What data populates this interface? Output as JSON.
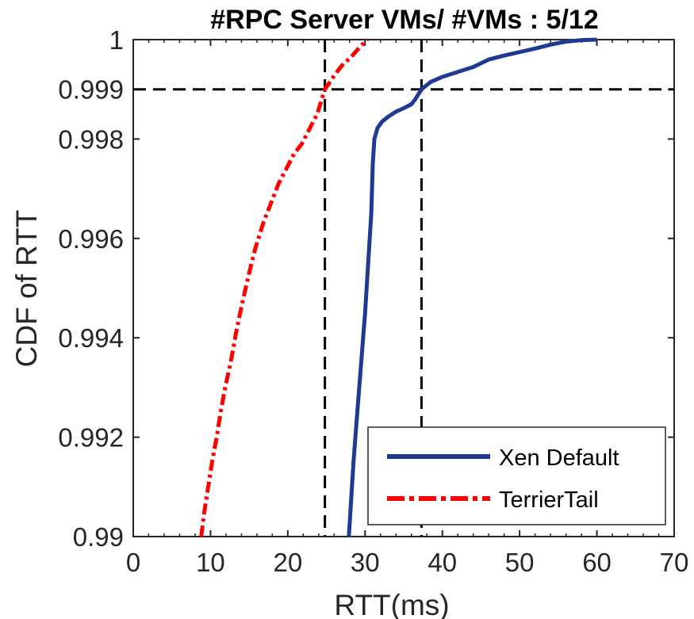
{
  "chart_data": {
    "type": "line",
    "title": "#RPC Server VMs/ #VMs  : 5/12",
    "xlabel": "RTT(ms)",
    "ylabel": "CDF of RTT",
    "xlim": [
      0,
      70
    ],
    "ylim": [
      0.99,
      1.0
    ],
    "x_ticks": [
      0,
      10,
      20,
      30,
      40,
      50,
      60,
      70
    ],
    "x_tick_labels": [
      "0",
      "10",
      "20",
      "30",
      "40",
      "50",
      "60",
      "70"
    ],
    "y_ticks": [
      0.99,
      0.992,
      0.994,
      0.996,
      0.998,
      0.999,
      1.0
    ],
    "y_tick_labels": [
      "0.99",
      "0.992",
      "0.994",
      "0.996",
      "0.998",
      "0.999",
      "1"
    ],
    "grid": false,
    "legend_position": "bottom-right",
    "reference_lines": {
      "horizontal": [
        0.999
      ],
      "vertical": [
        24.8,
        37.3
      ],
      "color": "#000000",
      "style": "dashed"
    },
    "series": [
      {
        "name": "Xen Default",
        "color": "#1f3a93",
        "style": "solid",
        "x": [
          27.9,
          28.1,
          28.5,
          29.0,
          29.5,
          30.0,
          30.4,
          30.8,
          31.0,
          31.2,
          31.6,
          32.2,
          33.0,
          34.0,
          35.0,
          36.0,
          36.5,
          37.3,
          38.5,
          40.0,
          42.0,
          44.0,
          46.0,
          48.0,
          50.0,
          52.0,
          54.0,
          56.0,
          58.0,
          60.0
        ],
        "y": [
          0.99,
          0.9905,
          0.9915,
          0.9925,
          0.9935,
          0.9945,
          0.9955,
          0.9965,
          0.9975,
          0.998,
          0.99822,
          0.99835,
          0.99845,
          0.99855,
          0.99862,
          0.9987,
          0.9988,
          0.999,
          0.99915,
          0.99925,
          0.99935,
          0.99945,
          0.9996,
          0.99968,
          0.99975,
          0.99982,
          0.9999,
          0.99996,
          0.99999,
          1.0
        ]
      },
      {
        "name": "TerrierTail",
        "color": "#ff0000",
        "style": "dashdot",
        "x": [
          8.8,
          9.2,
          9.7,
          10.2,
          10.8,
          11.3,
          11.9,
          12.6,
          13.3,
          14.1,
          15.0,
          15.8,
          16.8,
          17.8,
          18.8,
          19.8,
          20.8,
          21.8,
          22.8,
          23.8,
          24.8,
          25.9,
          27.0,
          28.2,
          29.5,
          30.3
        ],
        "y": [
          0.99,
          0.9905,
          0.991,
          0.9915,
          0.992,
          0.9925,
          0.993,
          0.9935,
          0.9941,
          0.9947,
          0.9953,
          0.9958,
          0.9963,
          0.9967,
          0.9971,
          0.9974,
          0.9977,
          0.9979,
          0.9982,
          0.9985,
          0.999,
          0.99925,
          0.99948,
          0.99965,
          0.99988,
          1.0
        ]
      }
    ]
  }
}
